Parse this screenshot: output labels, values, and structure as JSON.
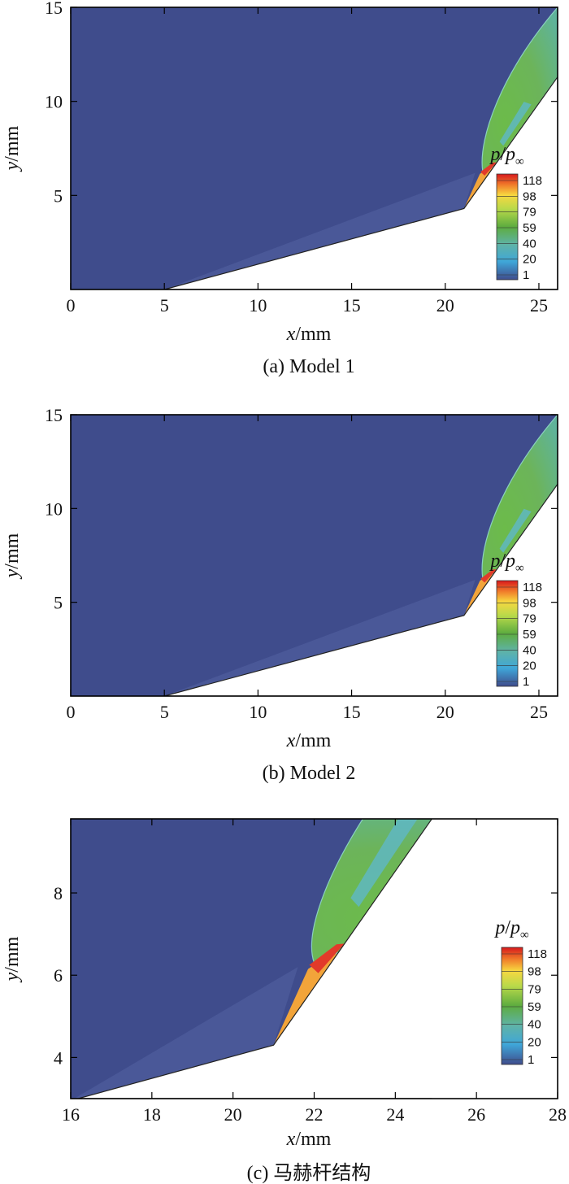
{
  "chart_data": [
    {
      "type": "heatmap",
      "panel": "a",
      "caption": "(a) Model 1",
      "xlabel_var": "x",
      "xlabel_unit": "/mm",
      "ylabel_var": "y",
      "ylabel_unit": "/mm",
      "xlim": [
        0,
        26
      ],
      "ylim": [
        0,
        15
      ],
      "xticks": [
        0,
        5,
        10,
        15,
        20,
        25
      ],
      "yticks": [
        5,
        10,
        15
      ],
      "legend_title_var": "p",
      "legend_title_sub": "∞",
      "legend_levels": [
        118,
        98,
        79,
        59,
        40,
        20,
        1
      ],
      "legend_placement": "right",
      "wedge_profile": [
        [
          5,
          0
        ],
        [
          21,
          4.3
        ],
        [
          26,
          11.3
        ]
      ],
      "shock_profile": [
        [
          21,
          4.3
        ],
        [
          22,
          6.3
        ],
        [
          26,
          15
        ]
      ]
    },
    {
      "type": "heatmap",
      "panel": "b",
      "caption": "(b) Model 2",
      "xlabel_var": "x",
      "xlabel_unit": "/mm",
      "ylabel_var": "y",
      "ylabel_unit": "/mm",
      "xlim": [
        0,
        26
      ],
      "ylim": [
        0,
        15
      ],
      "xticks": [
        0,
        5,
        10,
        15,
        20,
        25
      ],
      "yticks": [
        5,
        10,
        15
      ],
      "legend_title_var": "p",
      "legend_title_sub": "∞",
      "legend_levels": [
        118,
        98,
        79,
        59,
        40,
        20,
        1
      ],
      "legend_placement": "right",
      "wedge_profile": [
        [
          5,
          0
        ],
        [
          21,
          4.3
        ],
        [
          26,
          11.3
        ]
      ],
      "shock_profile": [
        [
          21,
          4.3
        ],
        [
          22,
          6.3
        ],
        [
          26,
          15
        ]
      ]
    },
    {
      "type": "heatmap",
      "panel": "c",
      "caption": "(c) 马赫杆结构",
      "xlabel_var": "x",
      "xlabel_unit": "/mm",
      "ylabel_var": "y",
      "ylabel_unit": "/mm",
      "xlim": [
        16,
        28
      ],
      "ylim": [
        3,
        9.8
      ],
      "xticks": [
        16,
        18,
        20,
        22,
        24,
        26,
        28
      ],
      "yticks": [
        4,
        6,
        8
      ],
      "legend_title_var": "p",
      "legend_title_sub": "∞",
      "legend_levels": [
        118,
        98,
        79,
        59,
        40,
        20,
        1
      ],
      "legend_placement": "right",
      "wedge_profile": [
        [
          16,
          2.95
        ],
        [
          21,
          4.3
        ],
        [
          24.9,
          9.8
        ]
      ],
      "shock_profile": [
        [
          21,
          4.3
        ],
        [
          22,
          6.3
        ],
        [
          23.2,
          9.8
        ]
      ]
    }
  ],
  "colors": {
    "freestream": "#3f4c8c",
    "compressed_layer": "#4a5898",
    "post_shock": "#6cb44f",
    "expansion": "#5fb8c8",
    "mach_stem": "#e23a2a",
    "reflected": "#f2a43a",
    "legend_scale": [
      "#d7191c",
      "#f07a2a",
      "#f7d840",
      "#b9d94a",
      "#5dac3f",
      "#5fb3a8",
      "#3fa6d8",
      "#3f4c8c"
    ]
  }
}
